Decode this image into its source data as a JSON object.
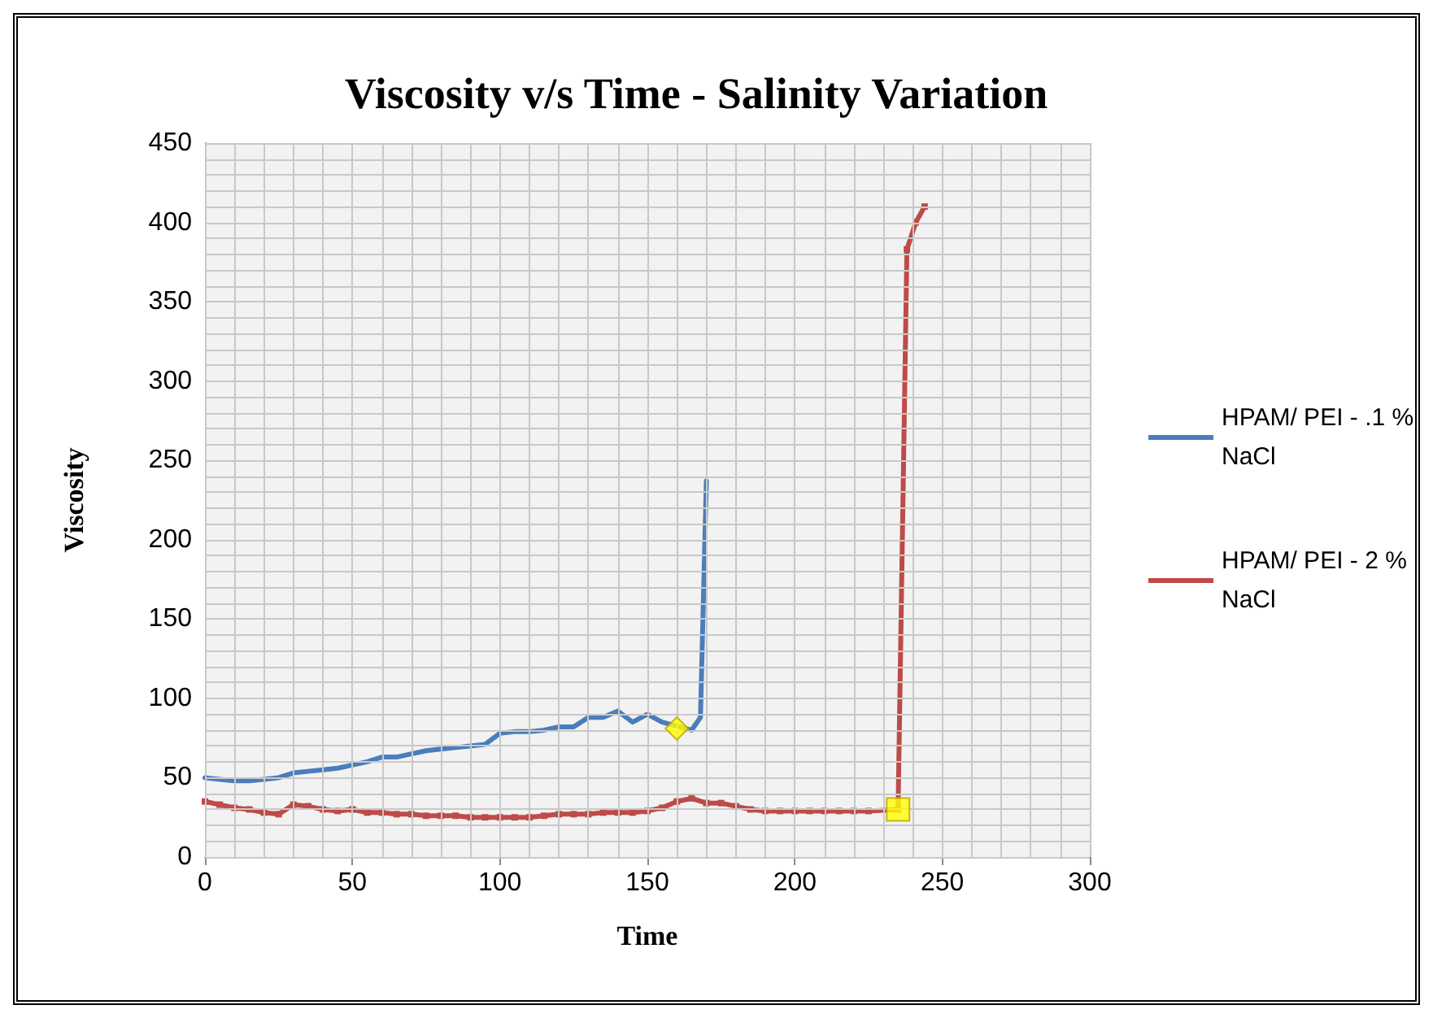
{
  "chart_data": {
    "type": "line",
    "title": "Viscosity v/s Time - Salinity Variation",
    "xlabel": "Time",
    "ylabel": "Viscosity",
    "xlim": [
      0,
      300
    ],
    "xticks": [
      0,
      50,
      100,
      150,
      200,
      250,
      300
    ],
    "ylim": [
      0,
      450
    ],
    "yticks": [
      0,
      50,
      100,
      150,
      200,
      250,
      300,
      350,
      400,
      450
    ],
    "grid": true,
    "legend": "right",
    "line_style": "solid",
    "series": [
      {
        "name": "HPAM/ PEI - .1 % NaCl",
        "color": "#4a7ebb",
        "marker": "none",
        "x": [
          0,
          5,
          10,
          15,
          20,
          25,
          30,
          35,
          40,
          45,
          50,
          55,
          60,
          65,
          70,
          75,
          80,
          85,
          90,
          95,
          100,
          105,
          110,
          115,
          120,
          125,
          130,
          135,
          140,
          145,
          150,
          155,
          165,
          168,
          170
        ],
        "values": [
          50,
          49,
          48,
          48,
          49,
          50,
          53,
          54,
          55,
          56,
          58,
          60,
          63,
          63,
          65,
          67,
          68,
          69,
          70,
          71,
          78,
          79,
          79,
          80,
          82,
          82,
          88,
          88,
          92,
          85,
          90,
          85,
          80,
          88,
          237
        ]
      },
      {
        "name": "HPAM/ PEI - 2 % NaCl",
        "color": "#be4b48",
        "marker": "square",
        "x": [
          0,
          5,
          10,
          15,
          20,
          25,
          30,
          35,
          40,
          45,
          50,
          55,
          60,
          65,
          70,
          75,
          80,
          85,
          90,
          95,
          100,
          105,
          110,
          115,
          120,
          125,
          130,
          135,
          140,
          145,
          150,
          155,
          160,
          165,
          170,
          175,
          180,
          185,
          190,
          195,
          200,
          205,
          210,
          215,
          220,
          225,
          235,
          238,
          241,
          244
        ],
        "values": [
          35,
          33,
          31,
          30,
          28,
          27,
          33,
          32,
          30,
          29,
          30,
          28,
          28,
          27,
          27,
          26,
          26,
          26,
          25,
          25,
          25,
          25,
          25,
          26,
          27,
          27,
          27,
          28,
          28,
          28,
          29,
          31,
          35,
          37,
          34,
          34,
          32,
          30,
          29,
          29,
          29,
          29,
          29,
          29,
          29,
          29,
          30,
          383,
          400,
          410
        ]
      },
      {
        "type": "scatter",
        "color": "#ffff00",
        "marker": "diamond",
        "x": [
          160
        ],
        "values": [
          81
        ]
      },
      {
        "type": "scatter",
        "color": "#ffff00",
        "marker": "square",
        "x": [
          235
        ],
        "values": [
          30
        ]
      }
    ]
  }
}
